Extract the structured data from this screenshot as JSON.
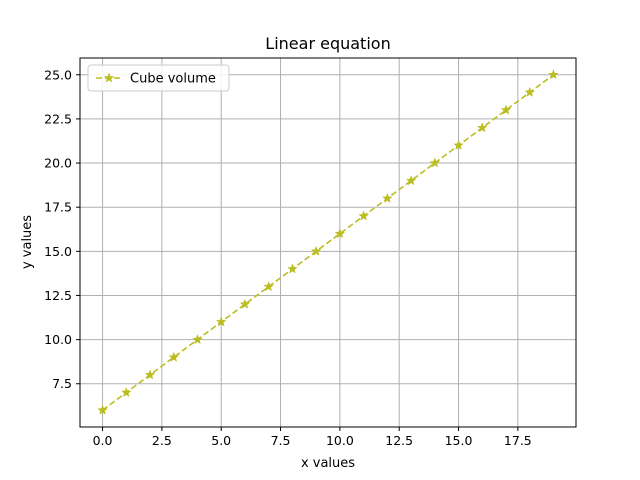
{
  "chart_data": {
    "type": "line",
    "title": "Linear equation",
    "xlabel": "x values",
    "ylabel": "y values",
    "xlim": [
      -0.95,
      19.95
    ],
    "ylim": [
      5.05,
      25.95
    ],
    "xticks": [
      0.0,
      2.5,
      5.0,
      7.5,
      10.0,
      12.5,
      15.0,
      17.5
    ],
    "xtick_labels": [
      "0.0",
      "2.5",
      "5.0",
      "7.5",
      "10.0",
      "12.5",
      "15.0",
      "17.5"
    ],
    "yticks": [
      7.5,
      10.0,
      12.5,
      15.0,
      17.5,
      20.0,
      22.5,
      25.0
    ],
    "ytick_labels": [
      "7.5",
      "10.0",
      "12.5",
      "15.0",
      "17.5",
      "20.0",
      "22.5",
      "25.0"
    ],
    "grid": true,
    "legend_position": "upper-left",
    "series": [
      {
        "name": "Cube volume",
        "color": "#bcbd22",
        "line_style": "dashed",
        "marker": "star",
        "x": [
          0,
          1,
          2,
          3,
          4,
          5,
          6,
          7,
          8,
          9,
          10,
          11,
          12,
          13,
          14,
          15,
          16,
          17,
          18,
          19
        ],
        "y": [
          6,
          7,
          8,
          9,
          10,
          11,
          12,
          13,
          14,
          15,
          16,
          17,
          18,
          19,
          20,
          21,
          22,
          23,
          24,
          25
        ]
      }
    ]
  }
}
